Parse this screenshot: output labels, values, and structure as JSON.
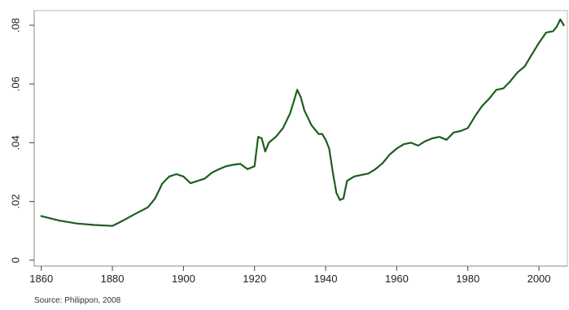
{
  "chart_data": {
    "type": "line",
    "title": "",
    "xlabel": "",
    "ylabel": "",
    "xlim": [
      1858,
      2008
    ],
    "ylim": [
      -0.002,
      0.085
    ],
    "x_ticks": [
      1860,
      1880,
      1900,
      1920,
      1940,
      1960,
      1980,
      2000
    ],
    "x_tick_labels": [
      "1860",
      "1880",
      "1900",
      "1920",
      "1940",
      "1960",
      "1980",
      "2000"
    ],
    "y_ticks": [
      0,
      0.02,
      0.04,
      0.06,
      0.08
    ],
    "y_tick_labels": [
      "0",
      ".02",
      ".04",
      ".06",
      ".08"
    ],
    "grid": false,
    "legend": "none",
    "line_color": "#1e5e1e",
    "series": [
      {
        "x": [
          1860,
          1865,
          1870,
          1875,
          1880,
          1883,
          1886,
          1890,
          1892,
          1894,
          1896,
          1898,
          1900,
          1902,
          1904,
          1906,
          1908,
          1910,
          1912,
          1914,
          1916,
          1918,
          1920,
          1921,
          1922,
          1923,
          1924,
          1926,
          1928,
          1930,
          1931,
          1932,
          1933,
          1934,
          1936,
          1938,
          1939,
          1940,
          1941,
          1942,
          1943,
          1944,
          1945,
          1946,
          1948,
          1950,
          1952,
          1954,
          1956,
          1958,
          1960,
          1962,
          1964,
          1966,
          1968,
          1970,
          1972,
          1974,
          1976,
          1978,
          1980,
          1982,
          1984,
          1986,
          1988,
          1990,
          1992,
          1994,
          1996,
          1998,
          2000,
          2002,
          2004,
          2005,
          2006,
          2007
        ],
        "y": [
          0.015,
          0.0135,
          0.0125,
          0.012,
          0.0117,
          0.0135,
          0.0155,
          0.018,
          0.021,
          0.026,
          0.0285,
          0.0293,
          0.0285,
          0.0262,
          0.027,
          0.0278,
          0.0298,
          0.031,
          0.032,
          0.0325,
          0.0328,
          0.031,
          0.032,
          0.042,
          0.0415,
          0.037,
          0.04,
          0.042,
          0.045,
          0.05,
          0.054,
          0.058,
          0.0555,
          0.051,
          0.046,
          0.043,
          0.043,
          0.041,
          0.038,
          0.03,
          0.023,
          0.0205,
          0.021,
          0.027,
          0.0285,
          0.029,
          0.0295,
          0.031,
          0.033,
          0.036,
          0.038,
          0.0395,
          0.04,
          0.039,
          0.0405,
          0.0415,
          0.042,
          0.041,
          0.0435,
          0.044,
          0.045,
          0.049,
          0.0525,
          0.055,
          0.058,
          0.0585,
          0.061,
          0.064,
          0.066,
          0.07,
          0.074,
          0.0775,
          0.078,
          0.0795,
          0.082,
          0.08
        ]
      }
    ]
  },
  "source_note": "Source: Philippon, 2008"
}
